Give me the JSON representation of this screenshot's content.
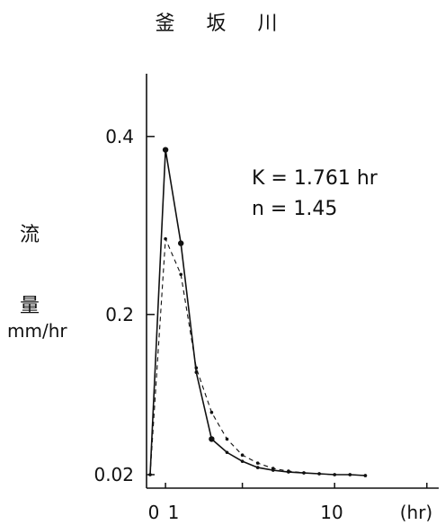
{
  "chart_data": {
    "type": "line",
    "title": "釜 坂 川",
    "ylabel_line1": "流",
    "ylabel_line2": "量",
    "ylabel_unit": "mm/hr",
    "xunit": "(hr)",
    "x_tick_labels": [
      "0",
      "1",
      "10"
    ],
    "y_tick_labels": [
      "0.4",
      "0.2",
      "0.02"
    ],
    "annotations": [
      "K = 1.761 hr",
      "n = 1.45"
    ],
    "xlim": [
      0,
      17
    ],
    "ylim": [
      0.02,
      0.44
    ],
    "series": [
      {
        "style": "solid",
        "x": [
          0,
          1,
          2,
          3,
          4,
          5,
          6,
          7,
          8,
          9,
          10,
          11,
          12,
          13,
          14
        ],
        "y": [
          0.02,
          0.385,
          0.28,
          0.135,
          0.06,
          0.045,
          0.035,
          0.028,
          0.025,
          0.023,
          0.022,
          0.021,
          0.02,
          0.02,
          0.019
        ]
      },
      {
        "style": "dashed",
        "x": [
          0,
          1,
          2,
          3,
          4,
          5,
          6,
          7,
          8,
          9,
          10,
          11,
          12,
          13,
          14
        ],
        "y": [
          0.02,
          0.285,
          0.245,
          0.14,
          0.09,
          0.06,
          0.042,
          0.033,
          0.027,
          0.024,
          0.022,
          0.021,
          0.02,
          0.02,
          0.019
        ]
      }
    ]
  }
}
